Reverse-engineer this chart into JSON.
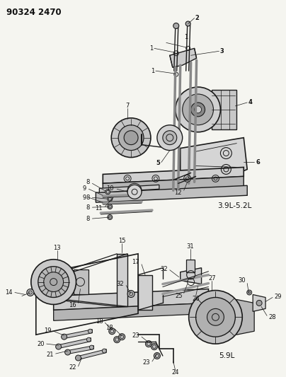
{
  "title": "90324 2470",
  "background_color": "#f5f5f0",
  "fig_width": 4.04,
  "fig_height": 5.33,
  "dpi": 100,
  "label_3_9L": "3.9L-5.2L",
  "label_5_9L": "5.9L",
  "line_color": "#1a1a1a",
  "text_color": "#111111",
  "label_fontsize": 6.0,
  "title_fontsize": 8.5
}
